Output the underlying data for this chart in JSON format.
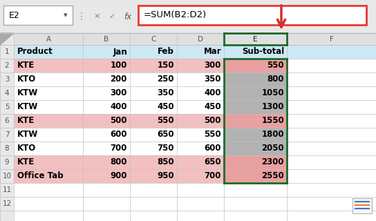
{
  "formula_bar_cell": "E2",
  "formula_bar_text": "=SUM(B2:D2)",
  "table_headers": [
    "Product",
    "Jan",
    "Feb",
    "Mar",
    "Sub-total"
  ],
  "data": [
    [
      "KTE",
      100,
      150,
      300,
      550
    ],
    [
      "KTO",
      200,
      250,
      350,
      800
    ],
    [
      "KTW",
      300,
      350,
      400,
      1050
    ],
    [
      "KTW",
      400,
      450,
      450,
      1300
    ],
    [
      "KTE",
      500,
      550,
      500,
      1550
    ],
    [
      "KTW",
      600,
      650,
      550,
      1800
    ],
    [
      "KTO",
      700,
      750,
      600,
      2050
    ],
    [
      "KTE",
      800,
      850,
      650,
      2300
    ],
    [
      "Office Tab",
      900,
      950,
      700,
      2550
    ]
  ],
  "header_bg": "#cce8f4",
  "pink_rows": [
    0,
    4,
    7,
    8
  ],
  "gray_col_e_rows": [
    1,
    2,
    3,
    5,
    6
  ],
  "pink_col_e_rows": [
    0,
    4,
    7,
    8
  ],
  "gray_color": "#b2b2b2",
  "pink_color": "#e8a0a0",
  "pink_row_color": "#f2c0c0",
  "white_color": "#ffffff",
  "col_e_border_color": "#1a6b2a",
  "formula_border_color": "#e53935",
  "arrow_color": "#d32f2f",
  "toolbar_bg": "#e8e8e8",
  "col_header_bg": "#e0e0e0",
  "row_num_bg": "#e8e8e8",
  "grid_color": "#c0c0c0",
  "fig_width": 5.44,
  "fig_height": 3.2,
  "dpi": 100
}
